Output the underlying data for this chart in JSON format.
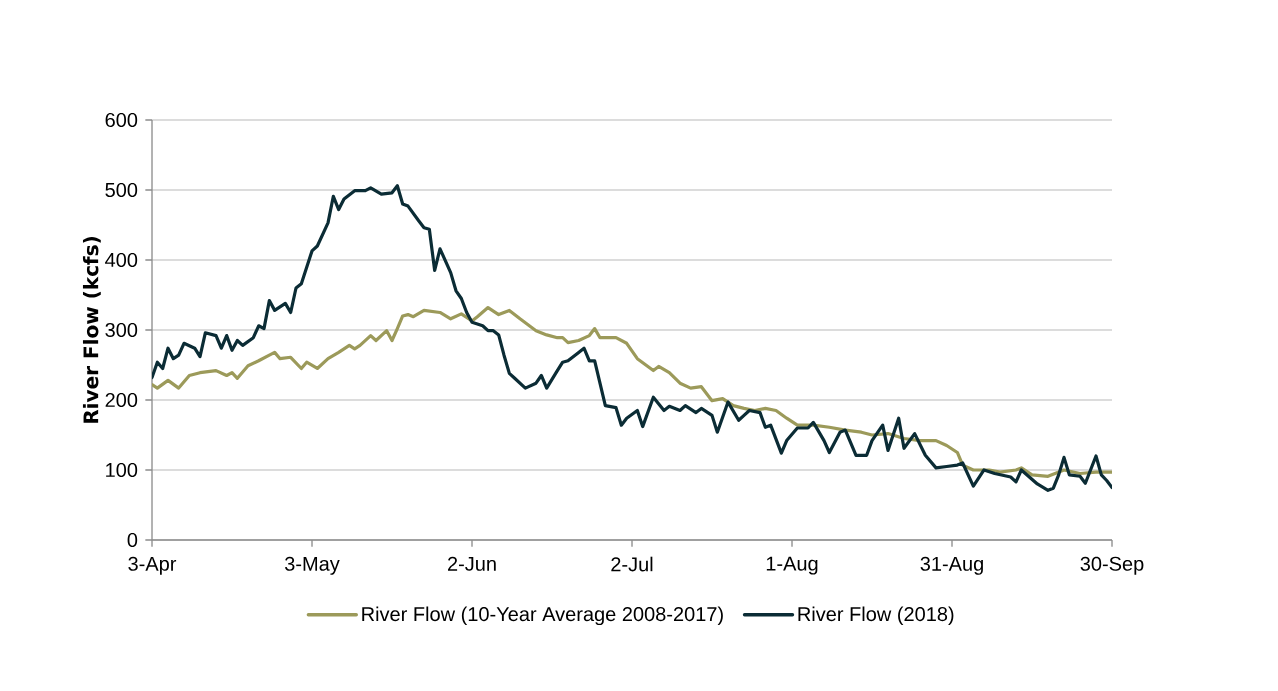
{
  "chart_data": {
    "type": "line",
    "ylabel": "River Flow (kcfs)",
    "xlim": [
      "2018-04-03",
      "2018-09-30"
    ],
    "xticks": [
      {
        "value": "2018-04-03",
        "label": "3-Apr"
      },
      {
        "value": "2018-05-03",
        "label": "3-May"
      },
      {
        "value": "2018-06-02",
        "label": "2-Jun"
      },
      {
        "value": "2018-07-02",
        "label": "2-Jul"
      },
      {
        "value": "2018-08-01",
        "label": "1-Aug"
      },
      {
        "value": "2018-08-31",
        "label": "31-Aug"
      },
      {
        "value": "2018-09-30",
        "label": "30-Sep"
      }
    ],
    "ylim": [
      0,
      600
    ],
    "yticks": [
      0,
      100,
      200,
      300,
      400,
      500,
      600
    ],
    "grid": "y",
    "legend": "bottom",
    "marker": "none",
    "line_style": "solid",
    "series": [
      {
        "name": "River Flow (10-Year Average 2008-2017)",
        "color": "#9c9a5a",
        "x": [
          "2018-04-03",
          "2018-04-04",
          "2018-04-06",
          "2018-04-08",
          "2018-04-10",
          "2018-04-12",
          "2018-04-15",
          "2018-04-17",
          "2018-04-18",
          "2018-04-19",
          "2018-04-21",
          "2018-04-23",
          "2018-04-25",
          "2018-04-26",
          "2018-04-27",
          "2018-04-29",
          "2018-05-01",
          "2018-05-02",
          "2018-05-04",
          "2018-05-06",
          "2018-05-08",
          "2018-05-10",
          "2018-05-11",
          "2018-05-12",
          "2018-05-14",
          "2018-05-15",
          "2018-05-17",
          "2018-05-18",
          "2018-05-19",
          "2018-05-20",
          "2018-05-21",
          "2018-05-22",
          "2018-05-24",
          "2018-05-27",
          "2018-05-29",
          "2018-05-31",
          "2018-06-02",
          "2018-06-03",
          "2018-06-05",
          "2018-06-07",
          "2018-06-09",
          "2018-06-11",
          "2018-06-14",
          "2018-06-16",
          "2018-06-18",
          "2018-06-19",
          "2018-06-20",
          "2018-06-22",
          "2018-06-24",
          "2018-06-25",
          "2018-06-26",
          "2018-06-29",
          "2018-07-01",
          "2018-07-03",
          "2018-07-06",
          "2018-07-07",
          "2018-07-09",
          "2018-07-11",
          "2018-07-13",
          "2018-07-15",
          "2018-07-17",
          "2018-07-19",
          "2018-07-21",
          "2018-07-23",
          "2018-07-25",
          "2018-07-27",
          "2018-07-29",
          "2018-07-31",
          "2018-08-02",
          "2018-08-05",
          "2018-08-08",
          "2018-08-11",
          "2018-08-14",
          "2018-08-16",
          "2018-08-19",
          "2018-08-22",
          "2018-08-25",
          "2018-08-28",
          "2018-08-30",
          "2018-09-01",
          "2018-09-02",
          "2018-09-04",
          "2018-09-07",
          "2018-09-09",
          "2018-09-12",
          "2018-09-13",
          "2018-09-15",
          "2018-09-18",
          "2018-09-21",
          "2018-09-24",
          "2018-09-27",
          "2018-09-30"
        ],
        "values": [
          222,
          217,
          228,
          217,
          235,
          239,
          242,
          235,
          239,
          231,
          249,
          256,
          264,
          268,
          259,
          261,
          245,
          254,
          245,
          259,
          268,
          278,
          273,
          278,
          292,
          285,
          299,
          285,
          302,
          320,
          322,
          319,
          328,
          325,
          316,
          323,
          313,
          319,
          332,
          322,
          328,
          316,
          299,
          293,
          289,
          289,
          282,
          285,
          292,
          302,
          289,
          289,
          281,
          259,
          242,
          248,
          239,
          224,
          217,
          219,
          199,
          202,
          192,
          188,
          185,
          188,
          185,
          174,
          164,
          164,
          161,
          157,
          154,
          150,
          152,
          145,
          142,
          142,
          135,
          125,
          107,
          100,
          100,
          97,
          100,
          103,
          93,
          91,
          100,
          95,
          97,
          97
        ]
      },
      {
        "name": "River Flow (2018)",
        "color": "#0b2c35",
        "x": [
          "2018-04-03",
          "2018-04-04",
          "2018-04-05",
          "2018-04-06",
          "2018-04-07",
          "2018-04-08",
          "2018-04-09",
          "2018-04-11",
          "2018-04-12",
          "2018-04-13",
          "2018-04-15",
          "2018-04-16",
          "2018-04-17",
          "2018-04-18",
          "2018-04-19",
          "2018-04-20",
          "2018-04-22",
          "2018-04-23",
          "2018-04-24",
          "2018-04-25",
          "2018-04-26",
          "2018-04-27",
          "2018-04-28",
          "2018-04-29",
          "2018-04-30",
          "2018-05-01",
          "2018-05-03",
          "2018-05-04",
          "2018-05-06",
          "2018-05-07",
          "2018-05-08",
          "2018-05-09",
          "2018-05-11",
          "2018-05-13",
          "2018-05-14",
          "2018-05-16",
          "2018-05-18",
          "2018-05-19",
          "2018-05-20",
          "2018-05-21",
          "2018-05-23",
          "2018-05-24",
          "2018-05-25",
          "2018-05-26",
          "2018-05-27",
          "2018-05-29",
          "2018-05-30",
          "2018-05-31",
          "2018-06-01",
          "2018-06-02",
          "2018-06-04",
          "2018-06-05",
          "2018-06-06",
          "2018-06-07",
          "2018-06-08",
          "2018-06-09",
          "2018-06-10",
          "2018-06-12",
          "2018-06-14",
          "2018-06-15",
          "2018-06-16",
          "2018-06-18",
          "2018-06-19",
          "2018-06-20",
          "2018-06-22",
          "2018-06-23",
          "2018-06-24",
          "2018-06-25",
          "2018-06-27",
          "2018-06-29",
          "2018-06-30",
          "2018-07-01",
          "2018-07-03",
          "2018-07-04",
          "2018-07-06",
          "2018-07-08",
          "2018-07-09",
          "2018-07-11",
          "2018-07-12",
          "2018-07-14",
          "2018-07-15",
          "2018-07-17",
          "2018-07-18",
          "2018-07-20",
          "2018-07-22",
          "2018-07-23",
          "2018-07-24",
          "2018-07-26",
          "2018-07-27",
          "2018-07-28",
          "2018-07-30",
          "2018-07-31",
          "2018-08-02",
          "2018-08-04",
          "2018-08-05",
          "2018-08-07",
          "2018-08-08",
          "2018-08-10",
          "2018-08-11",
          "2018-08-13",
          "2018-08-15",
          "2018-08-16",
          "2018-08-18",
          "2018-08-19",
          "2018-08-21",
          "2018-08-22",
          "2018-08-24",
          "2018-08-26",
          "2018-08-28",
          "2018-08-30",
          "2018-09-01",
          "2018-09-02",
          "2018-09-04",
          "2018-09-06",
          "2018-09-08",
          "2018-09-11",
          "2018-09-12",
          "2018-09-13",
          "2018-09-16",
          "2018-09-18",
          "2018-09-19",
          "2018-09-20",
          "2018-09-21",
          "2018-09-22",
          "2018-09-24",
          "2018-09-25",
          "2018-09-27",
          "2018-09-28",
          "2018-09-29",
          "2018-09-30"
        ],
        "values": [
          232,
          254,
          245,
          274,
          259,
          264,
          281,
          274,
          262,
          296,
          292,
          274,
          292,
          271,
          285,
          278,
          289,
          306,
          302,
          342,
          328,
          333,
          338,
          325,
          360,
          366,
          413,
          420,
          453,
          491,
          472,
          487,
          499,
          499,
          503,
          494,
          496,
          506,
          480,
          477,
          456,
          446,
          444,
          385,
          416,
          382,
          356,
          345,
          325,
          311,
          306,
          299,
          299,
          293,
          264,
          238,
          231,
          217,
          224,
          235,
          217,
          242,
          254,
          256,
          268,
          274,
          256,
          256,
          192,
          189,
          164,
          174,
          185,
          162,
          204,
          185,
          191,
          185,
          192,
          182,
          188,
          178,
          154,
          197,
          171,
          178,
          185,
          182,
          161,
          164,
          124,
          142,
          160,
          160,
          168,
          142,
          125,
          154,
          157,
          121,
          121,
          142,
          164,
          128,
          174,
          131,
          152,
          121,
          103,
          105,
          107,
          110,
          77,
          100,
          95,
          90,
          83,
          100,
          80,
          71,
          74,
          93,
          118,
          93,
          91,
          81,
          120,
          93,
          85,
          75
        ]
      }
    ]
  }
}
